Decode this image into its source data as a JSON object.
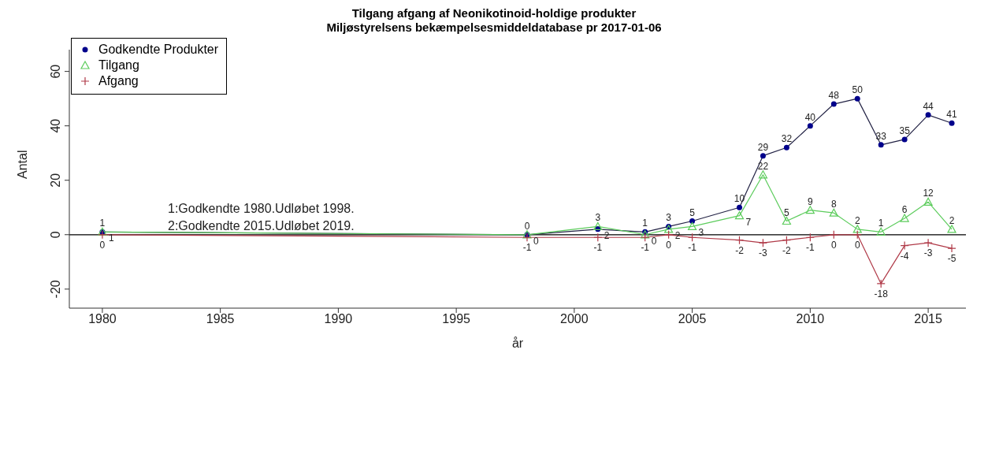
{
  "chart_data": {
    "type": "line",
    "title": "Tilgang afgang af Neonikotinoid-holdige produkter",
    "subtitle": "Miljøstyrelsens bekæmpelsesmiddeldatabase pr 2017-01-06",
    "xlabel": "år",
    "ylabel": "Antal",
    "x": [
      1980,
      1998,
      2001,
      2003,
      2004,
      2005,
      2007,
      2008,
      2009,
      2010,
      2011,
      2012,
      2013,
      2014,
      2015,
      2016
    ],
    "series": [
      {
        "name": "Godkendte Produkter",
        "color": "#00008b",
        "marker": "circle",
        "values": [
          1,
          0,
          2,
          1,
          3,
          5,
          10,
          29,
          32,
          40,
          48,
          50,
          33,
          35,
          44,
          41
        ]
      },
      {
        "name": "Tilgang",
        "color": "#5ccc5c",
        "marker": "triangle",
        "values": [
          1,
          0,
          3,
          0,
          2,
          3,
          7,
          22,
          5,
          9,
          8,
          2,
          1,
          6,
          12,
          2
        ]
      },
      {
        "name": "Afgang",
        "color": "#b03a48",
        "marker": "cross",
        "values": [
          0,
          -1,
          -1,
          -1,
          0,
          -1,
          -2,
          -3,
          -2,
          -1,
          0,
          0,
          -18,
          -4,
          -3,
          -5
        ]
      }
    ],
    "xlim": [
      1978.6,
      2016.6
    ],
    "xticks": [
      1980,
      1985,
      1990,
      1995,
      2000,
      2005,
      2010,
      2015
    ],
    "ylim": [
      -27,
      68
    ],
    "yticks": [
      -20,
      0,
      20,
      40,
      60
    ],
    "ref_lines": [
      {
        "axis": "y",
        "value": 0,
        "color": "#000000"
      }
    ],
    "annotations": [
      "1:Godkendte 1980.Udløbet 1998.",
      "2:Godkendte 2015.Udløbet 2019."
    ],
    "data_labels": true,
    "legend": "top left",
    "grid": false
  }
}
